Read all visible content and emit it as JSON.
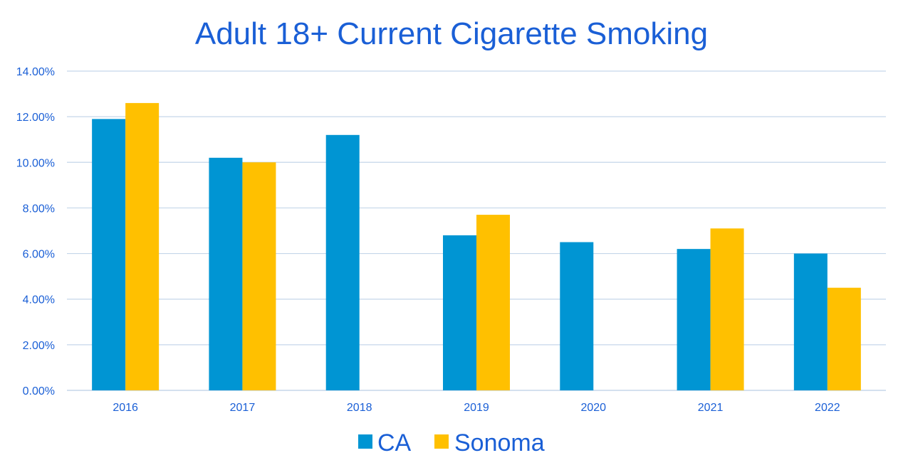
{
  "chart_data": {
    "type": "bar",
    "title": "Adult 18+ Current Cigarette Smoking",
    "xlabel": "",
    "ylabel": "",
    "categories": [
      "2016",
      "2017",
      "2018",
      "2019",
      "2020",
      "2021",
      "2022"
    ],
    "series": [
      {
        "name": "CA",
        "color": "#0095d3",
        "values": [
          11.9,
          10.2,
          11.2,
          6.8,
          6.5,
          6.2,
          6.0
        ]
      },
      {
        "name": "Sonoma",
        "color": "#ffc000",
        "values": [
          12.6,
          10.0,
          null,
          7.7,
          null,
          7.1,
          4.5
        ]
      }
    ],
    "ylim": [
      0,
      14
    ],
    "yticks": [
      "0.00%",
      "2.00%",
      "4.00%",
      "6.00%",
      "8.00%",
      "10.00%",
      "12.00%",
      "14.00%"
    ],
    "ytick_values": [
      0,
      2,
      4,
      6,
      8,
      10,
      12,
      14
    ],
    "grid": true,
    "legend_position": "bottom-center",
    "text_color": "#1a5fd6",
    "grid_color": "#c5d6ea"
  }
}
